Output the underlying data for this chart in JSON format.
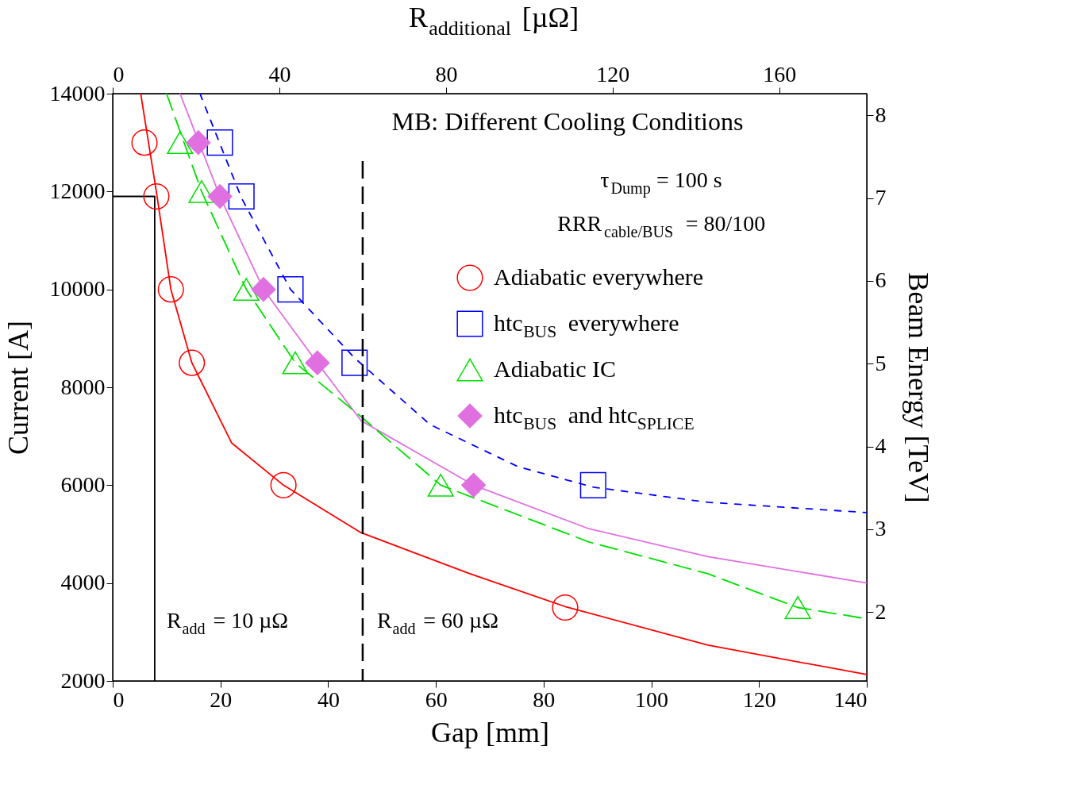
{
  "chart_data": {
    "type": "scatter",
    "title": "MB: Different Cooling Conditions",
    "xlabel": "Gap [mm]",
    "ylabel": "Current [A]",
    "x2label": "R$_{additional}$ [µΩ]",
    "y2label": "Beam Energy [TeV]",
    "xlim": [
      0,
      140
    ],
    "xticks": [
      0,
      20,
      40,
      60,
      80,
      100,
      120,
      140
    ],
    "ylim": [
      2000,
      14000
    ],
    "yticks": [
      2000,
      4000,
      6000,
      8000,
      10000,
      12000,
      14000
    ],
    "x2lim": [
      0,
      181
    ],
    "x2ticks": [
      0,
      40,
      80,
      120,
      160
    ],
    "y2lim": [
      1.17,
      8.26
    ],
    "y2ticks": [
      2,
      3,
      4,
      5,
      6,
      7,
      8
    ],
    "grid": false,
    "legend": "top right",
    "annotations": [
      "τ$_{Dump}$ = 100 s",
      "RRR$_{cable/BUS}$ = 80/100",
      "R$_{add}$ = 10 µΩ"
    ],
    "ref_lines": [
      {
        "axis": "x2",
        "value": 60,
        "label": "R$_{add}$ = 60 µΩ",
        "color": "#000000",
        "line_style": "dashed"
      }
    ],
    "series": [
      {
        "type": "line",
        "color": "#ff0000",
        "line_style": "solid",
        "x": [
          5.2,
          8.1,
          10.8,
          14.7,
          22.1,
          31.7,
          46.1,
          66.3,
          84,
          110.5,
          140
        ],
        "values": [
          14000,
          12000,
          10000,
          8500,
          6860,
          6000,
          5030,
          4190,
          3520,
          2730,
          2130
        ]
      },
      {
        "type": "line",
        "color": "#0000ff",
        "line_style": "dotted",
        "x": [
          16.2,
          23.9,
          33,
          44.9,
          58.9,
          75.2,
          89.2,
          110.5,
          140
        ],
        "values": [
          14000,
          11870,
          10000,
          8600,
          7240,
          6380,
          5960,
          5650,
          5440
        ]
      },
      {
        "type": "line",
        "color": "#e070e0",
        "line_style": "solid",
        "x": [
          12.5,
          19.9,
          28,
          38,
          46.1,
          67,
          88.4,
          110.5,
          140
        ],
        "values": [
          14000,
          11900,
          10000,
          8500,
          7320,
          6000,
          5110,
          4540,
          4000
        ]
      },
      {
        "type": "line",
        "color": "#00e000",
        "line_style": "dashed",
        "x": [
          10,
          16.5,
          24.8,
          33.9,
          46.1,
          60.9,
          88.4,
          110.5,
          127.2,
          140
        ],
        "values": [
          14000,
          12000,
          10000,
          8500,
          7400,
          6000,
          4840,
          4190,
          3500,
          3270
        ]
      },
      {
        "type": "line",
        "color": "#000000",
        "line_style": "solid",
        "x": [
          0,
          7.8,
          7.8
        ],
        "values": [
          11900,
          11900,
          2000
        ]
      },
      {
        "name": "Adiabatic everywhere",
        "color": "#ff0000",
        "marker": "circle",
        "x": [
          5.9,
          8.1,
          10.8,
          14.7,
          31.7,
          84
        ],
        "values": [
          13000,
          11900,
          10000,
          8500,
          6000,
          3500
        ]
      },
      {
        "name": "htc$_{BUS}$ everywhere",
        "color": "#0000ff",
        "marker": "square",
        "x": [
          19.9,
          23.9,
          33,
          44.9,
          89.2
        ],
        "values": [
          13000,
          11900,
          10000,
          8500,
          6000
        ]
      },
      {
        "name": "Adiabatic IC",
        "color": "#00e000",
        "marker": "triangle",
        "x": [
          12.5,
          16.5,
          24.8,
          33.9,
          60.9,
          127.2
        ],
        "values": [
          13000,
          12000,
          10000,
          8500,
          6000,
          3500
        ]
      },
      {
        "name": "htc$_{BUS}$ and htc$_{SPLICE}$",
        "color": "#e070e0",
        "marker": "diamond",
        "x": [
          15.9,
          19.9,
          28,
          38,
          67
        ],
        "values": [
          13000,
          11900,
          10000,
          8500,
          6000
        ]
      }
    ]
  }
}
